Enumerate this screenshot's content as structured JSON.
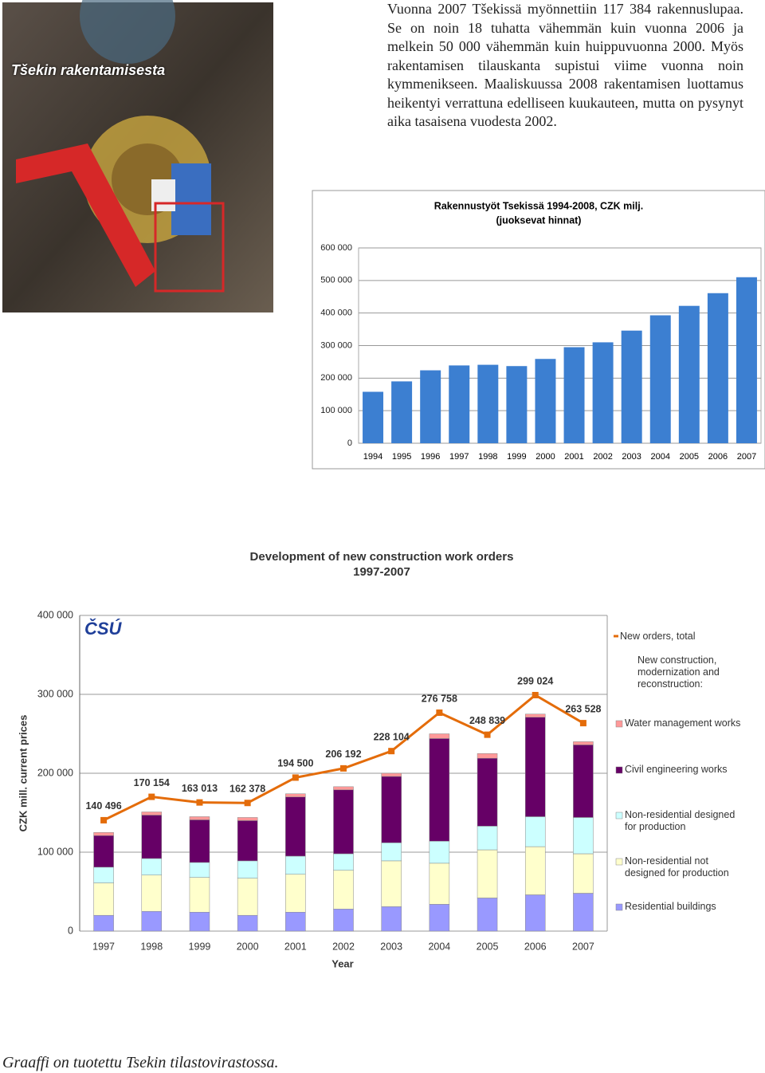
{
  "document": {
    "photo_caption": "Tšekin rakentamisesta",
    "paragraph": "Vuonna 2007 Tšekissä myönnettiin 117 384 rakennuslupaa. Se on noin 18 tuhatta vähemmän kuin vuonna 2006 ja melkein 50 000 vähemmän kuin huippuvuonna 2000. Myös rakentamisen tilauskanta supistui viime vuonna noin kymmenikseen. Maaliskuussa 2008 rakentamisen luottamus heikentyi verrattuna edelliseen kuukauteen, mutta on pysynyt aika tasaisena vuodesta 2002.",
    "footer": "Graaffi on tuotettu Tsekin tilastovirastossa."
  },
  "chart_data": [
    {
      "type": "bar",
      "title": "Rakennustyöt Tsekissä 1994-2008, CZK milj.",
      "subtitle": "(juoksevat hinnat)",
      "categories": [
        "1994",
        "1995",
        "1996",
        "1997",
        "1998",
        "1999",
        "2000",
        "2001",
        "2002",
        "2003",
        "2004",
        "2005",
        "2006",
        "2007"
      ],
      "values": [
        158000,
        190000,
        224000,
        239000,
        241000,
        237000,
        259000,
        295000,
        310000,
        346000,
        393000,
        422000,
        461000,
        510000
      ],
      "color": "#3c7fd1",
      "ylim": [
        0,
        600000
      ],
      "yticks": [
        0,
        {
          "value": 100000,
          "label": "100 000"
        },
        {
          "value": 200000,
          "label": "200 000"
        },
        {
          "value": 300000,
          "label": "300 000"
        },
        {
          "value": 400000,
          "label": "400 000"
        },
        {
          "value": 500000,
          "label": "500 000"
        },
        {
          "value": 600000,
          "label": "600 000"
        }
      ],
      "grid": true
    },
    {
      "type": "stacked_bar",
      "title": "Development of new construction work orders",
      "subtitle": "1997-2007",
      "logo": "ČSÚ",
      "x_label": "Year",
      "y_label": "CZK mill. current prices",
      "categories": [
        "1997",
        "1998",
        "1999",
        "2000",
        "2001",
        "2002",
        "2003",
        "2004",
        "2005",
        "2006",
        "2007"
      ],
      "legend_group_title": "New construction, modernization and reconstruction:",
      "series": [
        {
          "name": "Residential buildings",
          "color": "#9999ff",
          "values": [
            20000,
            25000,
            24000,
            20000,
            24000,
            28000,
            31000,
            34000,
            42000,
            46000,
            48000
          ]
        },
        {
          "name": "Non-residential not designed for production",
          "color": "#ffffcc",
          "values": [
            41000,
            46000,
            44000,
            47000,
            48000,
            49000,
            58000,
            52000,
            61000,
            61000,
            50000
          ]
        },
        {
          "name": "Non-residential designed for production",
          "color": "#ccffff",
          "values": [
            20000,
            21000,
            19000,
            22000,
            23000,
            21000,
            23000,
            28000,
            30000,
            38000,
            46000
          ]
        },
        {
          "name": "Civil engineering works",
          "color": "#660066",
          "values": [
            40000,
            55000,
            54000,
            51000,
            75000,
            81000,
            84000,
            130000,
            86000,
            126000,
            92000
          ]
        },
        {
          "name": "Water management works",
          "color": "#ff9999",
          "values": [
            4000,
            4000,
            4000,
            4000,
            4000,
            4000,
            4000,
            6000,
            6000,
            4000,
            4000
          ]
        }
      ],
      "line_series": {
        "name": "New orders, total",
        "color": "#e46c0a",
        "values": [
          140496,
          170154,
          163013,
          162378,
          194500,
          206192,
          228104,
          276758,
          248839,
          299024,
          263528
        ],
        "value_labels": [
          "140 496",
          "170 154",
          "163 013",
          "162 378",
          "194 500",
          "206 192",
          "228 104",
          "276 758",
          "248 839",
          "299 024",
          "263 528"
        ]
      },
      "ylim": [
        0,
        400000
      ],
      "yticks": [
        0,
        {
          "value": 100000,
          "label": "100 000"
        },
        {
          "value": 200000,
          "label": "200 000"
        },
        {
          "value": 300000,
          "label": "300 000"
        },
        {
          "value": 400000,
          "label": "400 000"
        }
      ],
      "grid": true
    }
  ]
}
